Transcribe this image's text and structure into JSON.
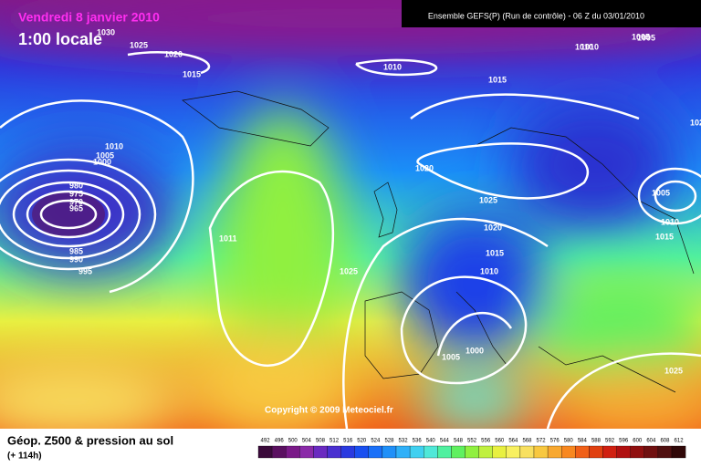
{
  "header": {
    "date": "Vendredi 8 janvier 2010",
    "hour": "1:00 locale",
    "model": "Ensemble GEFS(P) (Run de contrôle) - 06 Z du 03/01/2010"
  },
  "copyright": "Copyright © 2009 Meteociel.fr",
  "footer": {
    "title": "Géop. Z500 & pression au sol",
    "lead": "(+ 114h)"
  },
  "isobar_labels": [
    "1030",
    "1025",
    "1020",
    "1015",
    "1010",
    "1015",
    "1010",
    "1005",
    "1010",
    "1005",
    "1000",
    "980",
    "975",
    "970",
    "965",
    "985",
    "990",
    "995",
    "1011",
    "1025",
    "1020",
    "1025",
    "1020",
    "1015",
    "1010",
    "1005",
    "1000",
    "1005",
    "1010",
    "1015",
    "1025",
    "1010",
    "1005",
    "100",
    "102"
  ],
  "legend": {
    "labels": [
      "492",
      "496",
      "500",
      "504",
      "508",
      "512",
      "516",
      "520",
      "524",
      "528",
      "532",
      "536",
      "540",
      "544",
      "548",
      "552",
      "556",
      "560",
      "564",
      "568",
      "572",
      "576",
      "580",
      "584",
      "588",
      "592",
      "596",
      "600",
      "604",
      "608",
      "612"
    ],
    "colors": [
      "#3a0a3a",
      "#5a1060",
      "#7a1a88",
      "#8a2aa8",
      "#6a2ac0",
      "#4a30d0",
      "#2a3ae0",
      "#1a50f0",
      "#1a70f8",
      "#2090f8",
      "#30b0f8",
      "#40d0f0",
      "#50e8d8",
      "#50f0a0",
      "#60f060",
      "#90f040",
      "#c0f040",
      "#e8f040",
      "#f8f060",
      "#f8e060",
      "#f8c840",
      "#f8a830",
      "#f88820",
      "#f06018",
      "#e04010",
      "#d02010",
      "#b01010",
      "#901010",
      "#701010",
      "#501010",
      "#300808"
    ]
  }
}
